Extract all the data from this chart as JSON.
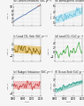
{
  "panels": [
    {
      "label": "(a)",
      "title": "Carbon Emissions (GtC yr⁻¹)",
      "line_color": "#5577aa",
      "shade_color": "#aabbdd",
      "shade2_color": "#cc6644",
      "ylim": [
        0,
        12
      ],
      "yticks": [
        2,
        4,
        6,
        8,
        10
      ],
      "noise": 0.18,
      "slope": 0.145,
      "base": 2.5,
      "has_shade": true,
      "trend_slope": true
    },
    {
      "label": "(b)",
      "title": "Atmospheric Growth Rate (GtC yr⁻¹)",
      "line_color": "#6bbfdd",
      "shade_color": "#99ddee",
      "shade2_color": "#cc6644",
      "ylim": [
        -1,
        7
      ],
      "yticks": [
        0,
        2,
        4,
        6
      ],
      "noise": 1.3,
      "slope": 0.055,
      "base": 1.2,
      "has_shade": true,
      "trend_slope": false
    },
    {
      "label": "(c)",
      "title": "Land CO₂ Sink (GtC yr⁻¹)",
      "line_color": "#886600",
      "shade_color": "#ddaa33",
      "shade2_color": "#ddaa33",
      "ylim": [
        -4,
        4
      ],
      "yticks": [
        -2,
        0,
        2
      ],
      "noise": 1.4,
      "slope": -0.01,
      "base": 0.5,
      "has_shade": true,
      "trend_slope": false
    },
    {
      "label": "(d)",
      "title": "Land CO₂ (GtC yr⁻¹)",
      "line_color": "#44aa44",
      "shade_color": "#88cc88",
      "shade2_color": "#44aa44",
      "ylim": [
        -4,
        6
      ],
      "yticks": [
        -2,
        0,
        2,
        4
      ],
      "noise": 1.8,
      "slope": 0.04,
      "base": -0.5,
      "has_shade": false,
      "trend_slope": false
    },
    {
      "label": "(e)",
      "title": "Budget Imbalance (GtC yr⁻¹)",
      "line_color": "#cc4444",
      "shade_color": "#ee9999",
      "shade2_color": "#ee9999",
      "ylim": [
        -3,
        3
      ],
      "yticks": [
        -2,
        0,
        2
      ],
      "noise": 1.1,
      "slope": 0.0,
      "base": 0.0,
      "has_shade": true,
      "trend_slope": false
    },
    {
      "label": "(f)",
      "title": "Ocean Sink (GtC yr⁻¹)",
      "line_color": "#229988",
      "shade_color": "#66bbaa",
      "shade2_color": "#229988",
      "ylim": [
        0,
        4
      ],
      "yticks": [
        1,
        2,
        3
      ],
      "noise": 0.35,
      "slope": 0.028,
      "base": 1.0,
      "has_shade": true,
      "trend_slope": false
    }
  ],
  "xmin": 1960,
  "xmax": 2020,
  "xticks": [
    1960,
    1980,
    2000,
    2020
  ],
  "bg_color": "#f5f5f5",
  "grid_color": "#cccccc"
}
